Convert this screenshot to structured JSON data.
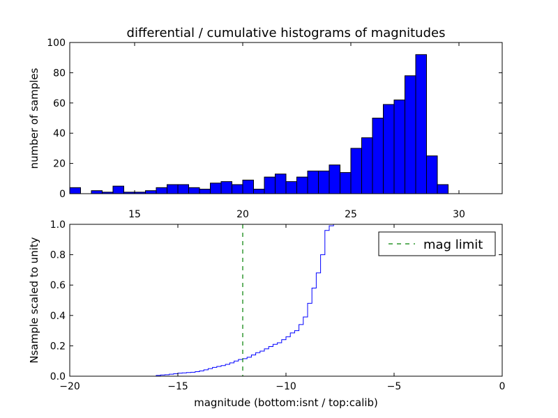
{
  "chart_data": [
    {
      "type": "bar",
      "title": "differential / cumulative histograms of magnitudes",
      "ylabel": "number of samples",
      "xlim": [
        12,
        32
      ],
      "ylim": [
        0,
        100
      ],
      "xticks": [
        15,
        20,
        25,
        30
      ],
      "yticks": [
        0,
        20,
        40,
        60,
        80,
        100
      ],
      "bin_width": 0.5,
      "bin_starts": [
        12.0,
        12.5,
        13.0,
        13.5,
        14.0,
        14.5,
        15.0,
        15.5,
        16.0,
        16.5,
        17.0,
        17.5,
        18.0,
        18.5,
        19.0,
        19.5,
        20.0,
        20.5,
        21.0,
        21.5,
        22.0,
        22.5,
        23.0,
        23.5,
        24.0,
        24.5,
        25.0,
        25.5,
        26.0,
        26.5,
        27.0,
        27.5,
        28.0,
        28.5,
        29.0,
        29.5,
        30.0,
        30.5,
        31.0
      ],
      "values": [
        4,
        0,
        2,
        1,
        5,
        1,
        1,
        2,
        4,
        6,
        6,
        4,
        3,
        7,
        8,
        6,
        9,
        3,
        11,
        13,
        8,
        11,
        15,
        15,
        19,
        14,
        30,
        37,
        50,
        59,
        62,
        78,
        92,
        25,
        6,
        0,
        0,
        0,
        0
      ],
      "bar_color": "#0000ff"
    },
    {
      "type": "line",
      "ylabel": "Nsample scaled to unity",
      "xlabel": "magnitude (bottom:isnt / top:calib)",
      "xlim": [
        -20,
        0
      ],
      "ylim": [
        0,
        1
      ],
      "xticks": [
        -20,
        -15,
        -10,
        -5,
        0
      ],
      "ytick_labels": [
        "0.0",
        "0.2",
        "0.4",
        "0.6",
        "0.8",
        "1.0"
      ],
      "series": [
        {
          "style": "step",
          "color": "#0000ff",
          "x": [
            -20.0,
            -16.0,
            -15.8,
            -15.6,
            -15.4,
            -15.2,
            -15.0,
            -14.8,
            -14.6,
            -14.4,
            -14.2,
            -14.0,
            -13.8,
            -13.6,
            -13.4,
            -13.2,
            -13.0,
            -12.8,
            -12.6,
            -12.4,
            -12.2,
            -12.0,
            -11.8,
            -11.6,
            -11.4,
            -11.2,
            -11.0,
            -10.8,
            -10.6,
            -10.4,
            -10.2,
            -10.0,
            -9.8,
            -9.6,
            -9.4,
            -9.2,
            -9.0,
            -8.8,
            -8.6,
            -8.4,
            -8.2,
            -8.0,
            -7.8,
            -7.6
          ],
          "y": [
            0.0,
            0.005,
            0.008,
            0.01,
            0.013,
            0.016,
            0.02,
            0.022,
            0.024,
            0.026,
            0.03,
            0.035,
            0.042,
            0.05,
            0.058,
            0.064,
            0.07,
            0.078,
            0.088,
            0.1,
            0.11,
            0.115,
            0.125,
            0.14,
            0.155,
            0.165,
            0.18,
            0.195,
            0.21,
            0.22,
            0.24,
            0.26,
            0.285,
            0.3,
            0.34,
            0.39,
            0.48,
            0.58,
            0.68,
            0.8,
            0.96,
            0.99,
            1.0,
            1.0
          ]
        },
        {
          "name": "mag limit",
          "style": "dashed-vline",
          "color": "#008000",
          "x": -12.0
        }
      ],
      "legend": {
        "position": "top-right",
        "entries": [
          "mag limit"
        ]
      }
    }
  ]
}
